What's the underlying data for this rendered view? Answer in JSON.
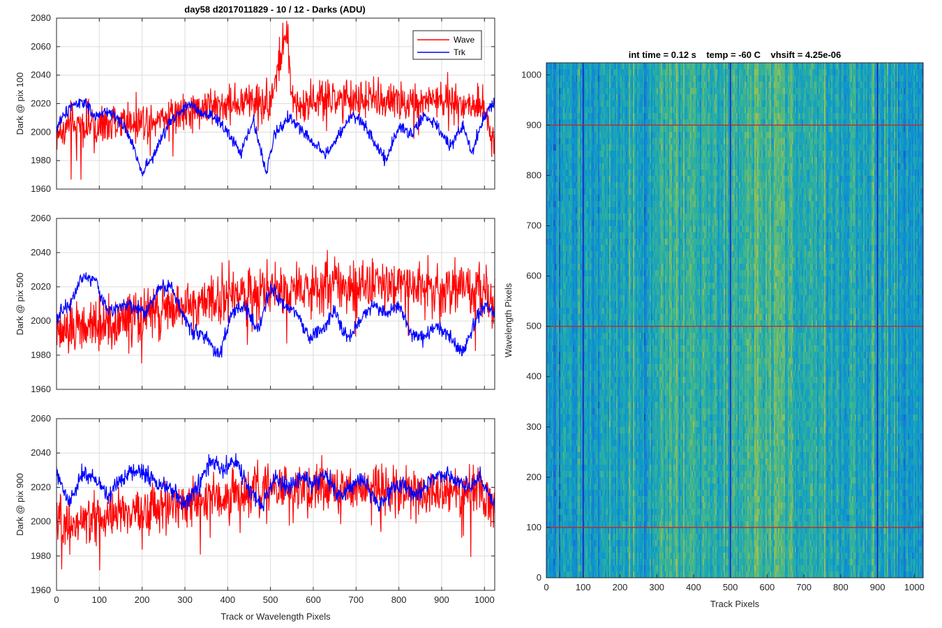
{
  "figure": {
    "suptitle": "day58 d2017011829 - 10 / 12 - Darks (ADU)",
    "shared_xlabel": "Track or Wavelength Pixels"
  },
  "colors": {
    "wave": "#ff0000",
    "trk": "#0000ff",
    "grid": "#dcdcdc",
    "axis": "#262626",
    "overlay_h": "#cc2222",
    "overlay_v": "#1a1acc"
  },
  "chart_data": [
    {
      "type": "line",
      "panel": "top",
      "title": "day58 d2017011829 - 10 / 12 - Darks (ADU)",
      "xlabel": "",
      "ylabel": "Dark @ pix 100",
      "xlim": [
        0,
        1024
      ],
      "ylim": [
        1960,
        2080
      ],
      "xticks": [
        0,
        100,
        200,
        300,
        400,
        500,
        600,
        700,
        800,
        900,
        1000
      ],
      "yticks": [
        1960,
        1980,
        2000,
        2020,
        2040,
        2060,
        2080
      ],
      "grid": true,
      "legend": {
        "placement": "top-right",
        "entries": [
          "Wave",
          "Trk"
        ]
      },
      "series": [
        {
          "name": "Wave",
          "color": "#ff0000",
          "x": [
            0,
            50,
            100,
            150,
            200,
            250,
            300,
            350,
            400,
            450,
            500,
            538,
            550,
            600,
            650,
            700,
            750,
            800,
            850,
            900,
            950,
            1000,
            1024
          ],
          "values": [
            2000,
            2004,
            2003,
            2007,
            2009,
            2011,
            2013,
            2018,
            2020,
            2021,
            2022,
            2070,
            2022,
            2021,
            2022,
            2023,
            2023,
            2022,
            2021,
            2022,
            2021,
            2019,
            1992
          ],
          "noise": 13
        },
        {
          "name": "Trk",
          "color": "#0000ff",
          "x": [
            0,
            30,
            60,
            90,
            120,
            150,
            180,
            200,
            230,
            260,
            290,
            310,
            340,
            370,
            400,
            430,
            460,
            490,
            510,
            540,
            570,
            600,
            630,
            660,
            690,
            720,
            750,
            770,
            800,
            830,
            860,
            890,
            920,
            950,
            970,
            1000,
            1024
          ],
          "values": [
            2003,
            2018,
            2022,
            2010,
            2015,
            2008,
            1990,
            1972,
            1985,
            2005,
            2015,
            2020,
            2012,
            2010,
            2000,
            1985,
            2008,
            1972,
            1998,
            2010,
            2003,
            1992,
            1985,
            1997,
            2012,
            2005,
            1990,
            1980,
            2005,
            1998,
            2012,
            2003,
            1990,
            2005,
            1985,
            2012,
            2022
          ],
          "noise": 5
        }
      ]
    },
    {
      "type": "line",
      "panel": "middle",
      "title": "",
      "xlabel": "",
      "ylabel": "Dark @ pix 500",
      "xlim": [
        0,
        1024
      ],
      "ylim": [
        1960,
        2060
      ],
      "xticks": [
        0,
        100,
        200,
        300,
        400,
        500,
        600,
        700,
        800,
        900,
        1000
      ],
      "yticks": [
        1960,
        1980,
        2000,
        2020,
        2040,
        2060
      ],
      "grid": true,
      "series": [
        {
          "name": "Wave",
          "color": "#ff0000",
          "x": [
            0,
            50,
            100,
            150,
            200,
            250,
            300,
            350,
            400,
            450,
            500,
            550,
            600,
            650,
            700,
            750,
            800,
            850,
            900,
            950,
            1000,
            1024
          ],
          "values": [
            1992,
            1996,
            1998,
            2000,
            2003,
            2006,
            2009,
            2012,
            2014,
            2016,
            2018,
            2019,
            2020,
            2022,
            2021,
            2022,
            2021,
            2020,
            2019,
            2018,
            2016,
            2012
          ],
          "noise": 14
        },
        {
          "name": "Trk",
          "color": "#0000ff",
          "x": [
            0,
            30,
            60,
            90,
            120,
            150,
            180,
            210,
            240,
            270,
            300,
            320,
            350,
            380,
            410,
            440,
            470,
            500,
            530,
            560,
            590,
            620,
            650,
            680,
            710,
            740,
            770,
            800,
            830,
            860,
            890,
            920,
            950,
            980,
            1000,
            1024
          ],
          "values": [
            2002,
            2010,
            2026,
            2024,
            2005,
            2010,
            2008,
            2005,
            2020,
            2020,
            2000,
            1995,
            1990,
            1980,
            2005,
            2008,
            1995,
            2020,
            2008,
            2005,
            1990,
            1995,
            2005,
            1990,
            2000,
            2010,
            2005,
            2010,
            1992,
            1990,
            1998,
            1990,
            1982,
            2000,
            2010,
            2005
          ],
          "noise": 5
        }
      ]
    },
    {
      "type": "line",
      "panel": "bottom",
      "title": "",
      "xlabel": "Track or Wavelength Pixels",
      "ylabel": "Dark @ pix 900",
      "xlim": [
        0,
        1024
      ],
      "ylim": [
        1960,
        2060
      ],
      "xticks": [
        0,
        100,
        200,
        300,
        400,
        500,
        600,
        700,
        800,
        900,
        1000
      ],
      "yticks": [
        1960,
        1980,
        2000,
        2020,
        2040,
        2060
      ],
      "grid": true,
      "series": [
        {
          "name": "Wave",
          "color": "#ff0000",
          "x": [
            0,
            50,
            100,
            150,
            200,
            250,
            300,
            350,
            400,
            450,
            500,
            550,
            600,
            650,
            700,
            750,
            800,
            850,
            900,
            950,
            1000,
            1024
          ],
          "values": [
            1998,
            2000,
            2002,
            2004,
            2006,
            2008,
            2011,
            2013,
            2015,
            2017,
            2018,
            2019,
            2020,
            2020,
            2019,
            2019,
            2018,
            2018,
            2017,
            2017,
            2016,
            2012
          ],
          "noise": 13
        },
        {
          "name": "Trk",
          "color": "#0000ff",
          "x": [
            0,
            30,
            60,
            90,
            120,
            150,
            180,
            210,
            240,
            270,
            300,
            330,
            360,
            390,
            420,
            450,
            480,
            510,
            540,
            570,
            600,
            630,
            660,
            690,
            720,
            750,
            780,
            810,
            840,
            870,
            900,
            930,
            960,
            990,
            1024
          ],
          "values": [
            2028,
            2010,
            2028,
            2025,
            2015,
            2025,
            2030,
            2028,
            2022,
            2018,
            2010,
            2020,
            2035,
            2030,
            2035,
            2018,
            2010,
            2025,
            2020,
            2025,
            2022,
            2028,
            2015,
            2020,
            2025,
            2008,
            2018,
            2022,
            2015,
            2025,
            2028,
            2025,
            2020,
            2025,
            2010
          ],
          "noise": 6
        }
      ]
    },
    {
      "type": "heatmap",
      "panel": "right",
      "title": "int time = 0.12 s    temp = -60 C    vhsift = 4.25e-06",
      "xlabel": "Track Pixels",
      "ylabel": "Wavelength Pixels",
      "xlim": [
        0,
        1024
      ],
      "ylim": [
        0,
        1024
      ],
      "xticks": [
        0,
        100,
        200,
        300,
        400,
        500,
        600,
        700,
        800,
        900,
        1000
      ],
      "yticks": [
        0,
        100,
        200,
        300,
        400,
        500,
        600,
        700,
        800,
        900,
        1000
      ],
      "grid": false,
      "colormap": "parula",
      "column_brightness": {
        "x": [
          0,
          50,
          100,
          200,
          300,
          400,
          500,
          550,
          600,
          650,
          700,
          800,
          900,
          1000,
          1024
        ],
        "values": [
          0.35,
          0.4,
          0.42,
          0.46,
          0.52,
          0.55,
          0.55,
          0.62,
          0.65,
          0.6,
          0.55,
          0.52,
          0.48,
          0.43,
          0.4
        ]
      },
      "overlay_horizontal_lines": [
        100,
        500,
        900
      ],
      "overlay_vertical_lines": [
        100,
        500,
        900
      ]
    }
  ]
}
